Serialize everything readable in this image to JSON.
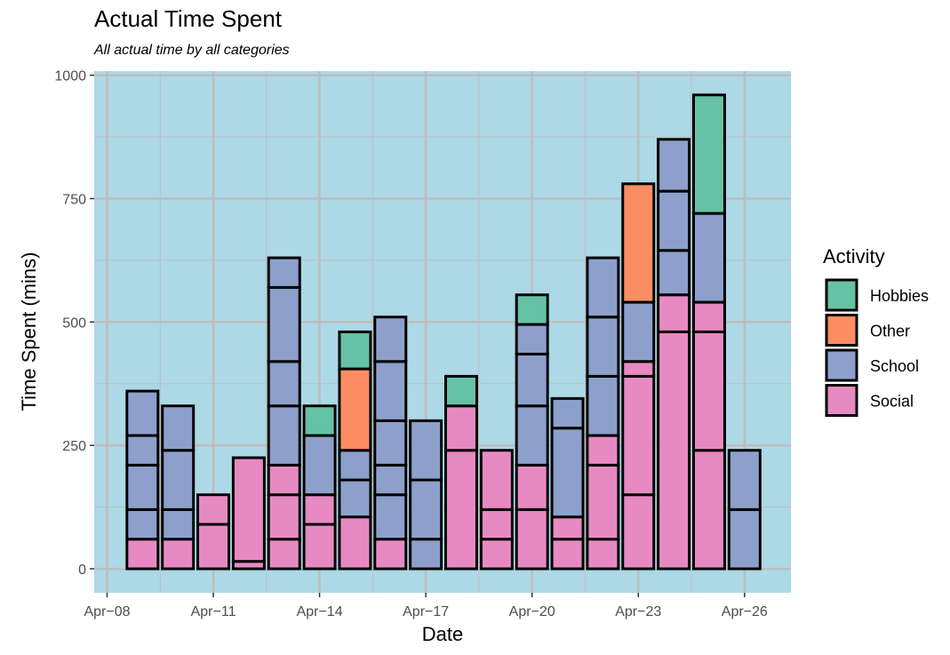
{
  "chart_data": {
    "type": "bar",
    "stacked": true,
    "title": "Actual Time Spent",
    "subtitle": "All actual time by all categories",
    "xlabel": "Date",
    "ylabel": "Time Spent (mins)",
    "ylim": [
      -40,
      1000
    ],
    "y_ticks": [
      0,
      250,
      500,
      750,
      1000
    ],
    "x_ticks": [
      "Apr−08",
      "Apr−11",
      "Apr−14",
      "Apr−17",
      "Apr−20",
      "Apr−23",
      "Apr−26"
    ],
    "x_tick_dates": [
      "2021-04-08",
      "2021-04-11",
      "2021-04-14",
      "2021-04-17",
      "2021-04-20",
      "2021-04-23",
      "2021-04-26"
    ],
    "xlim": [
      "2021-04-08",
      "2021-04-27"
    ],
    "background": "#add8e6",
    "grid": true,
    "legend": {
      "title": "Activity",
      "position": "right",
      "items": [
        {
          "name": "Hobbies",
          "color": "#66c2a5"
        },
        {
          "name": "Other",
          "color": "#fc8d62"
        },
        {
          "name": "School",
          "color": "#8da0cb"
        },
        {
          "name": "Social",
          "color": "#e78ac3"
        }
      ]
    },
    "bars": [
      {
        "date": "2021-04-09",
        "segments": [
          {
            "category": "Social",
            "value": 60
          },
          {
            "category": "School",
            "value": 60
          },
          {
            "category": "School",
            "value": 90
          },
          {
            "category": "School",
            "value": 60
          },
          {
            "category": "School",
            "value": 90
          }
        ]
      },
      {
        "date": "2021-04-10",
        "segments": [
          {
            "category": "Social",
            "value": 60
          },
          {
            "category": "School",
            "value": 60
          },
          {
            "category": "School",
            "value": 120
          },
          {
            "category": "School",
            "value": 90
          }
        ]
      },
      {
        "date": "2021-04-11",
        "segments": [
          {
            "category": "Social",
            "value": 90
          },
          {
            "category": "Social",
            "value": 60
          }
        ]
      },
      {
        "date": "2021-04-12",
        "segments": [
          {
            "category": "Social",
            "value": 15
          },
          {
            "category": "Social",
            "value": 210
          }
        ]
      },
      {
        "date": "2021-04-13",
        "segments": [
          {
            "category": "Social",
            "value": 60
          },
          {
            "category": "Social",
            "value": 90
          },
          {
            "category": "Social",
            "value": 60
          },
          {
            "category": "School",
            "value": 120
          },
          {
            "category": "School",
            "value": 90
          },
          {
            "category": "School",
            "value": 150
          },
          {
            "category": "School",
            "value": 60
          }
        ]
      },
      {
        "date": "2021-04-14",
        "segments": [
          {
            "category": "Social",
            "value": 90
          },
          {
            "category": "Social",
            "value": 60
          },
          {
            "category": "School",
            "value": 120
          },
          {
            "category": "Hobbies",
            "value": 60
          }
        ]
      },
      {
        "date": "2021-04-15",
        "segments": [
          {
            "category": "Social",
            "value": 105
          },
          {
            "category": "School",
            "value": 75
          },
          {
            "category": "School",
            "value": 60
          },
          {
            "category": "Other",
            "value": 165
          },
          {
            "category": "Hobbies",
            "value": 75
          }
        ]
      },
      {
        "date": "2021-04-16",
        "segments": [
          {
            "category": "Social",
            "value": 60
          },
          {
            "category": "School",
            "value": 90
          },
          {
            "category": "School",
            "value": 60
          },
          {
            "category": "School",
            "value": 90
          },
          {
            "category": "School",
            "value": 120
          },
          {
            "category": "School",
            "value": 90
          }
        ]
      },
      {
        "date": "2021-04-17",
        "segments": [
          {
            "category": "School",
            "value": 60
          },
          {
            "category": "School",
            "value": 120
          },
          {
            "category": "School",
            "value": 120
          }
        ]
      },
      {
        "date": "2021-04-18",
        "segments": [
          {
            "category": "Social",
            "value": 240
          },
          {
            "category": "Social",
            "value": 90
          },
          {
            "category": "Hobbies",
            "value": 60
          }
        ]
      },
      {
        "date": "2021-04-19",
        "segments": [
          {
            "category": "Social",
            "value": 60
          },
          {
            "category": "Social",
            "value": 60
          },
          {
            "category": "Social",
            "value": 120
          }
        ]
      },
      {
        "date": "2021-04-20",
        "segments": [
          {
            "category": "Social",
            "value": 120
          },
          {
            "category": "Social",
            "value": 90
          },
          {
            "category": "School",
            "value": 120
          },
          {
            "category": "School",
            "value": 105
          },
          {
            "category": "School",
            "value": 60
          },
          {
            "category": "Hobbies",
            "value": 60
          }
        ]
      },
      {
        "date": "2021-04-21",
        "segments": [
          {
            "category": "Social",
            "value": 60
          },
          {
            "category": "Social",
            "value": 45
          },
          {
            "category": "School",
            "value": 180
          },
          {
            "category": "School",
            "value": 60
          }
        ]
      },
      {
        "date": "2021-04-22",
        "segments": [
          {
            "category": "Social",
            "value": 60
          },
          {
            "category": "Social",
            "value": 150
          },
          {
            "category": "Social",
            "value": 60
          },
          {
            "category": "School",
            "value": 120
          },
          {
            "category": "School",
            "value": 120
          },
          {
            "category": "School",
            "value": 120
          }
        ]
      },
      {
        "date": "2021-04-23",
        "segments": [
          {
            "category": "Social",
            "value": 150
          },
          {
            "category": "Social",
            "value": 240
          },
          {
            "category": "Social",
            "value": 30
          },
          {
            "category": "School",
            "value": 120
          },
          {
            "category": "Other",
            "value": 240
          }
        ]
      },
      {
        "date": "2021-04-24",
        "segments": [
          {
            "category": "Social",
            "value": 480
          },
          {
            "category": "Social",
            "value": 75
          },
          {
            "category": "School",
            "value": 90
          },
          {
            "category": "School",
            "value": 120
          },
          {
            "category": "School",
            "value": 105
          }
        ]
      },
      {
        "date": "2021-04-25",
        "segments": [
          {
            "category": "Social",
            "value": 240
          },
          {
            "category": "Social",
            "value": 240
          },
          {
            "category": "Social",
            "value": 60
          },
          {
            "category": "School",
            "value": 180
          },
          {
            "category": "Hobbies",
            "value": 240
          }
        ]
      },
      {
        "date": "2021-04-26",
        "segments": [
          {
            "category": "School",
            "value": 120
          },
          {
            "category": "School",
            "value": 120
          }
        ]
      }
    ]
  }
}
